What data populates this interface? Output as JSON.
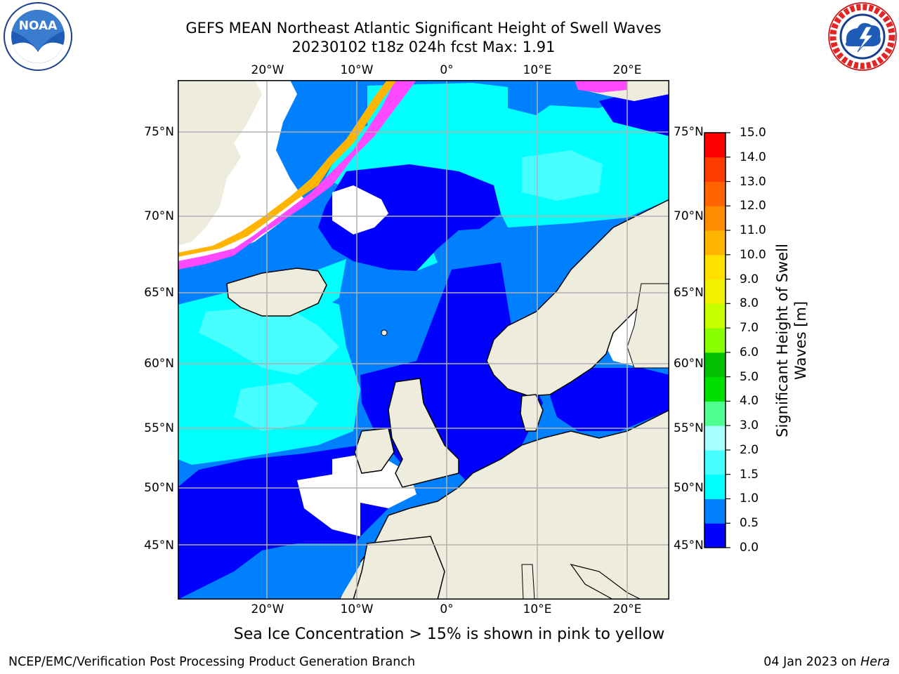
{
  "title": {
    "line1": "GEFS MEAN Northeast Atlantic Significant Height of Swell Waves",
    "line2": "20230102 t18z 024h fcst    Max: 1.91"
  },
  "logos": {
    "left": "noaa-logo",
    "right": "national-weather-service-logo"
  },
  "map": {
    "longitude_ticks": [
      "20°W",
      "10°W",
      "0°",
      "10°E",
      "20°E"
    ],
    "latitude_ticks": [
      "75°N",
      "70°N",
      "65°N",
      "60°N",
      "55°N",
      "50°N",
      "45°N"
    ],
    "land_color": "#eeeddd",
    "sea_ice_colors": [
      "#ff49ff",
      "#ffb400",
      "#ffe060"
    ]
  },
  "colorbar": {
    "label": "Significant Height of Swell Waves [m]",
    "ticks": [
      "0.0",
      "0.5",
      "1.0",
      "1.5",
      "2.0",
      "3.0",
      "4.0",
      "5.0",
      "6.0",
      "7.0",
      "8.0",
      "9.0",
      "10.0",
      "11.0",
      "12.0",
      "13.0",
      "14.0",
      "15.0"
    ],
    "colors": [
      "#0000ff",
      "#0080ff",
      "#00ffff",
      "#48ffff",
      "#a8ffff",
      "#50ff90",
      "#00e000",
      "#00c000",
      "#88ff00",
      "#c8ff00",
      "#f0f000",
      "#ffe000",
      "#ffb400",
      "#ff8c00",
      "#ff6400",
      "#ff3c00",
      "#ff0000"
    ]
  },
  "note": "Sea Ice Concentration > 15% is shown in pink to yellow",
  "footer": {
    "left": "NCEP/EMC/Verification Post Processing Product Generation Branch",
    "right_date": "04 Jan 2023 on ",
    "right_host": "Hera"
  }
}
